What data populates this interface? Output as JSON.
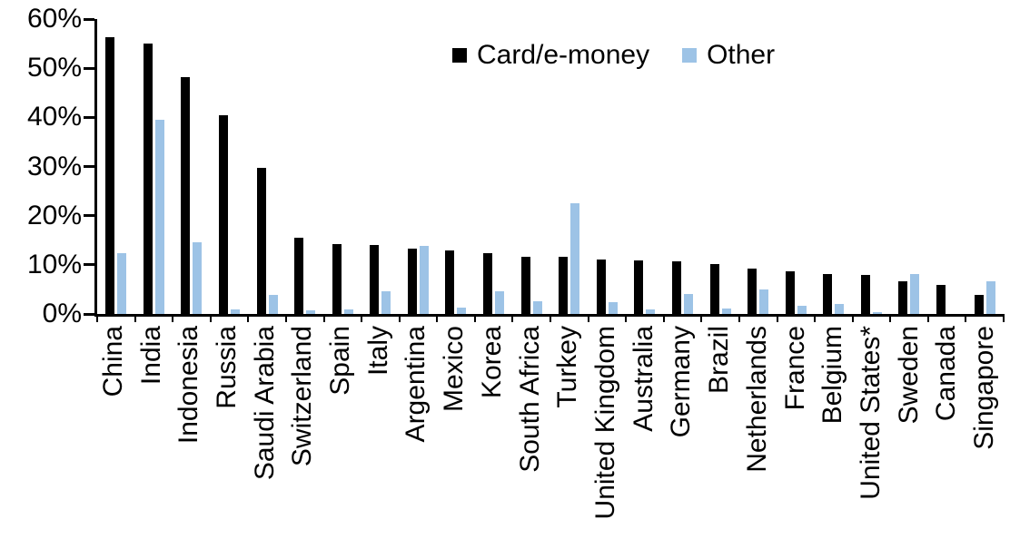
{
  "chart_data": {
    "type": "bar",
    "title": "",
    "xlabel": "",
    "ylabel": "",
    "ylim": [
      0,
      60
    ],
    "ytick_interval": 10,
    "ytick_labels": [
      "0%",
      "10%",
      "20%",
      "30%",
      "40%",
      "50%",
      "60%"
    ],
    "grid": false,
    "legend_position": "top-center",
    "categories": [
      "China",
      "India",
      "Indonesia",
      "Russia",
      "Saudi Arabia",
      "Switzerland",
      "Spain",
      "Italy",
      "Argentina",
      "Mexico",
      "Korea",
      "South Africa",
      "Turkey",
      "United Kingdom",
      "Australia",
      "Germany",
      "Brazil",
      "Netherlands",
      "France",
      "Belgium",
      "United States*",
      "Sweden",
      "Canada",
      "Singapore"
    ],
    "series": [
      {
        "name": "Card/e-money",
        "color": "#000000",
        "values": [
          56.3,
          55.0,
          48.2,
          40.5,
          29.8,
          15.5,
          14.2,
          14.1,
          13.3,
          13.0,
          12.3,
          11.7,
          11.6,
          11.1,
          10.9,
          10.7,
          10.1,
          9.3,
          8.7,
          8.2,
          7.9,
          6.7,
          5.9,
          3.9
        ]
      },
      {
        "name": "Other",
        "color": "#9DC3E6",
        "values": [
          12.3,
          39.6,
          14.5,
          0.9,
          3.8,
          0.8,
          1.0,
          4.6,
          13.8,
          1.3,
          4.6,
          2.5,
          22.6,
          2.4,
          1.0,
          4.0,
          1.2,
          5.0,
          1.6,
          2.1,
          0.4,
          8.1,
          0,
          6.7
        ]
      }
    ],
    "colors": {
      "axis": "#000000",
      "text": "#000000",
      "background": "#FFFFFF"
    }
  }
}
